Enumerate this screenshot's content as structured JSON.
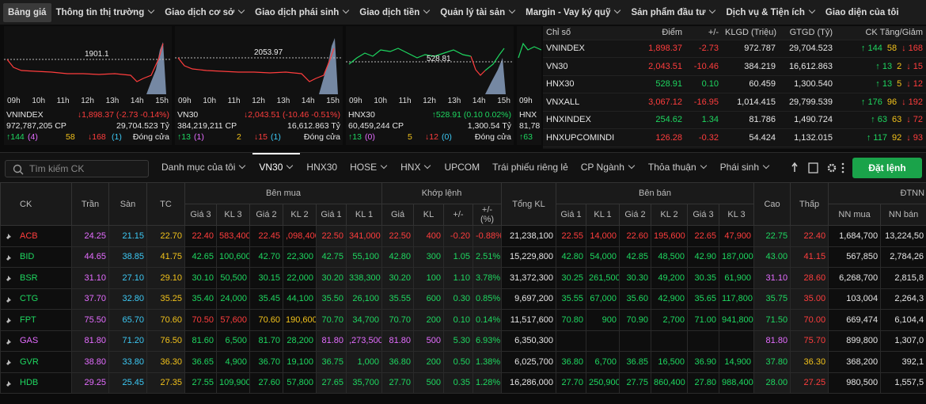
{
  "nav": {
    "items": [
      "Bảng giá",
      "Thông tin thị trường",
      "Giao dịch cơ sở",
      "Giao dịch phái sinh",
      "Giao dịch tiền",
      "Quản lý tài sản",
      "Margin - Vay ký quỹ",
      "Sản phẩm đầu tư",
      "Dịch vụ & Tiện ích",
      "Giao diện của tôi"
    ]
  },
  "time_labels": [
    "09h",
    "10h",
    "11h",
    "12h",
    "13h",
    "14h",
    "15h"
  ],
  "index_cards": [
    {
      "name": "VNINDEX",
      "value": "↓1,898.37 (-2.73 -0.14%)",
      "volume": "972,787,205 CP",
      "amount": "29,704.523 Tỷ",
      "up": "↑144",
      "up_ceiling": "(4)",
      "unchanged": "58",
      "down": "↓168",
      "down_floor": "(1)",
      "status": "Đóng cửa",
      "reference": 1901.1
    },
    {
      "name": "VN30",
      "value": "↓2,043.51 (-10.46 -0.51%)",
      "volume": "384,219,211 CP",
      "amount": "16,612.863 Tỷ",
      "up": "↑13",
      "up_ceiling": "(1)",
      "unchanged": "2",
      "down": "↓15",
      "down_floor": "(1)",
      "status": "Đóng cửa",
      "reference": 2053.97
    },
    {
      "name": "HNX30",
      "value": "↑528.91 (0.10 0.02%)",
      "volume": "60,459,244 CP",
      "amount": "1,300.54 Tỷ",
      "up": "↑13",
      "up_ceiling": "(0)",
      "unchanged": "5",
      "down": "↓12",
      "down_floor": "(0)",
      "status": "Đóng cửa",
      "reference": 528.81
    },
    {
      "name": "HNX",
      "volume": "81,78",
      "up": "↑63"
    }
  ],
  "index_table": {
    "headers": [
      "Chỉ số",
      "Điểm",
      "+/-",
      "KLGD (Triệu)",
      "GTGD (Tỷ)",
      "CK Tăng/Giảm"
    ],
    "rows": [
      [
        "VNINDEX",
        "1,898.37",
        "-2.73",
        "972.787",
        "29,704.523",
        "↑ 144",
        "58",
        "↓ 168"
      ],
      [
        "VN30",
        "2,043.51",
        "-10.46",
        "384.219",
        "16,612.863",
        "↑ 13",
        "2",
        "↓ 15"
      ],
      [
        "HNX30",
        "528.91",
        "0.10",
        "60.459",
        "1,300.540",
        "↑ 13",
        "5",
        "↓ 12"
      ],
      [
        "VNXALL",
        "3,067.12",
        "-16.95",
        "1,014.415",
        "29,799.539",
        "↑ 176",
        "96",
        "↓ 192"
      ],
      [
        "HNXINDEX",
        "254.62",
        "1.34",
        "81.786",
        "1,490.724",
        "↑ 63",
        "63",
        "↓ 72"
      ],
      [
        "HNXUPCOMINDI",
        "126.28",
        "-0.32",
        "54.424",
        "1,132.015",
        "↑ 117",
        "92",
        "↓ 93"
      ]
    ]
  },
  "toolbar": {
    "search_placeholder": "Tìm kiếm CK",
    "tabs": [
      "Danh mục của tôi",
      "VN30",
      "HNX30",
      "HOSE",
      "HNX",
      "UPCOM",
      "Trái phiếu riêng lẻ",
      "CP Ngành",
      "Thỏa thuận",
      "Phái sinh"
    ],
    "order_button": "Đặt lệnh"
  },
  "table": {
    "group_headers": [
      "CK",
      "Trần",
      "Sàn",
      "TC",
      "Bên mua",
      "Khớp lệnh",
      "Tổng KL",
      "Bên bán",
      "Cao",
      "Thấp",
      "ĐTNN"
    ],
    "sub_headers": [
      "Giá 3",
      "KL 3",
      "Giá 2",
      "KL 2",
      "Giá 1",
      "KL 1",
      "Giá",
      "KL",
      "+/-",
      "+/- (%)",
      "Giá 1",
      "KL 1",
      "Giá 2",
      "KL 2",
      "Giá 3",
      "KL 3",
      "NN mua",
      "NN bán"
    ],
    "rows": [
      [
        "ACB",
        "24.25",
        "21.15",
        "22.70",
        "22.40",
        "583,400",
        "22.45",
        ",098,400",
        "22.50",
        "341,000",
        "22.50",
        "400",
        "-0.20",
        "-0.88%",
        "21,238,100",
        "22.55",
        "14,000",
        "22.60",
        "195,600",
        "22.65",
        "47,900",
        "22.75",
        "22.40",
        "1,684,700",
        "13,224,50"
      ],
      [
        "BID",
        "44.65",
        "38.85",
        "41.75",
        "42.65",
        "100,600",
        "42.70",
        "22,300",
        "42.75",
        "55,100",
        "42.80",
        "300",
        "1.05",
        "2.51%",
        "15,229,800",
        "42.80",
        "54,000",
        "42.85",
        "48,500",
        "42.90",
        "187,000",
        "43.00",
        "41.15",
        "567,850",
        "2,784,26"
      ],
      [
        "BSR",
        "31.10",
        "27.10",
        "29.10",
        "30.10",
        "50,500",
        "30.15",
        "22,000",
        "30.20",
        "338,300",
        "30.20",
        "100",
        "1.10",
        "3.78%",
        "31,372,300",
        "30.25",
        "261,500",
        "30.30",
        "49,200",
        "30.35",
        "61,900",
        "31.10",
        "28.60",
        "6,268,700",
        "2,815,8"
      ],
      [
        "CTG",
        "37.70",
        "32.80",
        "35.25",
        "35.40",
        "24,000",
        "35.45",
        "44,100",
        "35.50",
        "26,100",
        "35.55",
        "600",
        "0.30",
        "0.85%",
        "9,697,200",
        "35.55",
        "67,000",
        "35.60",
        "42,900",
        "35.65",
        "117,800",
        "35.75",
        "35.00",
        "103,004",
        "2,264,3"
      ],
      [
        "FPT",
        "75.50",
        "65.70",
        "70.60",
        "70.50",
        "57,600",
        "70.60",
        "190,600",
        "70.70",
        "34,700",
        "70.70",
        "200",
        "0.10",
        "0.14%",
        "11,517,600",
        "70.80",
        "900",
        "70.90",
        "2,700",
        "71.00",
        "941,800",
        "71.50",
        "70.00",
        "669,474",
        "6,104,4"
      ],
      [
        "GAS",
        "81.80",
        "71.20",
        "76.50",
        "81.60",
        "6,500",
        "81.70",
        "28,200",
        "81.80",
        ",273,500",
        "81.80",
        "500",
        "5.30",
        "6.93%",
        "6,350,300",
        null,
        null,
        null,
        null,
        null,
        null,
        "81.80",
        "75.70",
        "899,800",
        "1,307,0"
      ],
      [
        "GVR",
        "38.80",
        "33.80",
        "36.30",
        "36.65",
        "4,900",
        "36.70",
        "19,100",
        "36.75",
        "1,000",
        "36.80",
        "200",
        "0.50",
        "1.38%",
        "6,025,700",
        "36.80",
        "6,700",
        "36.85",
        "16,500",
        "36.90",
        "14,900",
        "37.80",
        "36.30",
        "368,200",
        "392,1"
      ],
      [
        "HDB",
        "29.25",
        "25.45",
        "27.35",
        "27.55",
        "109,900",
        "27.60",
        "57,800",
        "27.65",
        "35,700",
        "27.70",
        "500",
        "0.35",
        "1.28%",
        "16,286,000",
        "27.70",
        "250,900",
        "27.75",
        "860,400",
        "27.80",
        "988,400",
        "28.00",
        "27.25",
        "980,500",
        "1,557,5"
      ]
    ]
  }
}
